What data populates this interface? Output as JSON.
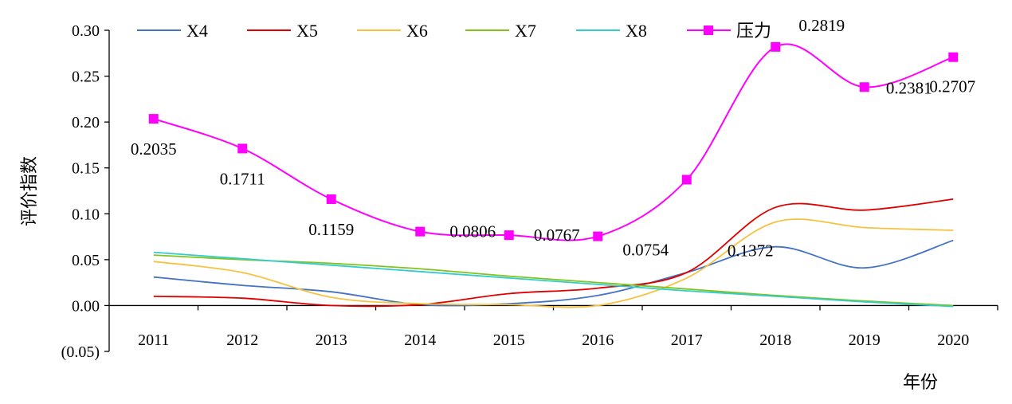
{
  "chart_data": {
    "type": "line",
    "title": "",
    "xlabel": "年份",
    "ylabel": "评价指数",
    "categories": [
      "2011",
      "2012",
      "2013",
      "2014",
      "2015",
      "2016",
      "2017",
      "2018",
      "2019",
      "2020"
    ],
    "ylim": [
      -0.05,
      0.3
    ],
    "yticks": [
      {
        "value": 0.3,
        "label": "0.30"
      },
      {
        "value": 0.25,
        "label": "0.25"
      },
      {
        "value": 0.2,
        "label": "0.20"
      },
      {
        "value": 0.15,
        "label": "0.15"
      },
      {
        "value": 0.1,
        "label": "0.10"
      },
      {
        "value": 0.05,
        "label": "0.05"
      },
      {
        "value": 0.0,
        "label": "0.00"
      },
      {
        "value": -0.05,
        "label": "(0.05)"
      }
    ],
    "negative_tick_color": "#e60000",
    "grid": false,
    "legend_position": "top",
    "series": [
      {
        "name": "X4",
        "color": "#4472c4",
        "marker": "none",
        "values": [
          0.031,
          0.022,
          0.015,
          0.001,
          0.002,
          0.011,
          0.036,
          0.064,
          0.041,
          0.071
        ]
      },
      {
        "name": "X5",
        "color": "#e00000",
        "marker": "none",
        "values": [
          0.01,
          0.008,
          0.0,
          0.001,
          0.013,
          0.019,
          0.036,
          0.107,
          0.104,
          0.116
        ]
      },
      {
        "name": "X6",
        "color": "#f5c242",
        "marker": "none",
        "values": [
          0.048,
          0.036,
          0.009,
          0.002,
          0.001,
          0.0,
          0.03,
          0.091,
          0.085,
          0.082
        ]
      },
      {
        "name": "X7",
        "color": "#7fc31c",
        "marker": "none",
        "values": [
          0.055,
          0.05,
          0.046,
          0.04,
          0.032,
          0.025,
          0.018,
          0.011,
          0.005,
          0.0
        ]
      },
      {
        "name": "X8",
        "color": "#33cccc",
        "marker": "none",
        "values": [
          0.058,
          0.051,
          0.044,
          0.037,
          0.03,
          0.023,
          0.016,
          0.01,
          0.004,
          -0.001
        ]
      },
      {
        "name": "压力",
        "color": "#ff00ff",
        "marker": "square",
        "values": [
          0.2035,
          0.1711,
          0.1159,
          0.0806,
          0.0767,
          0.0754,
          0.1372,
          0.2819,
          0.2381,
          0.2707
        ],
        "data_labels": [
          "0.2035",
          "0.1711",
          "0.1159",
          "0.0806",
          "0.0767",
          "0.0754",
          "0.1372",
          "0.2819",
          "0.2381",
          "0.2707"
        ]
      }
    ]
  }
}
